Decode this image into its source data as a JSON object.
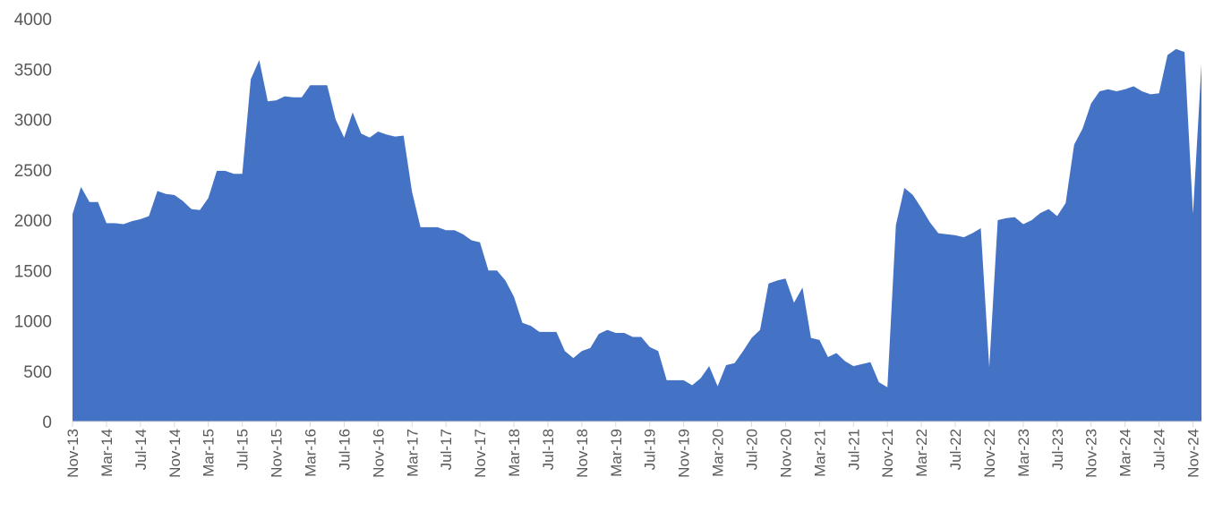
{
  "chart_data": {
    "type": "area",
    "title": "",
    "xlabel": "",
    "ylabel": "",
    "ylim": [
      0,
      4000
    ],
    "yticks": [
      0,
      500,
      1000,
      1500,
      2000,
      2500,
      3000,
      3500,
      4000
    ],
    "grid": false,
    "legend": "none",
    "fill_color": "#4472C4",
    "x_tick_labels": [
      "Nov-13",
      "Mar-14",
      "Jul-14",
      "Nov-14",
      "Mar-15",
      "Jul-15",
      "Nov-15",
      "Mar-16",
      "Jul-16",
      "Nov-16",
      "Mar-17",
      "Jul-17",
      "Nov-17",
      "Mar-18",
      "Jul-18",
      "Nov-18",
      "Mar-19",
      "Jul-19",
      "Nov-19",
      "Mar-20",
      "Jul-20",
      "Nov-20",
      "Mar-21",
      "Jul-21",
      "Nov-21",
      "Mar-22",
      "Jul-22",
      "Nov-22",
      "Mar-23",
      "Jul-23",
      "Nov-23",
      "Mar-24",
      "Jul-24",
      "Nov-24"
    ],
    "x": [
      "2013-11",
      "2013-12",
      "2014-01",
      "2014-02",
      "2014-03",
      "2014-04",
      "2014-05",
      "2014-06",
      "2014-07",
      "2014-08",
      "2014-09",
      "2014-10",
      "2014-11",
      "2014-12",
      "2015-01",
      "2015-02",
      "2015-03",
      "2015-04",
      "2015-05",
      "2015-06",
      "2015-07",
      "2015-08",
      "2015-09",
      "2015-10",
      "2015-11",
      "2015-12",
      "2016-01",
      "2016-02",
      "2016-03",
      "2016-04",
      "2016-05",
      "2016-06",
      "2016-07",
      "2016-08",
      "2016-09",
      "2016-10",
      "2016-11",
      "2016-12",
      "2017-01",
      "2017-02",
      "2017-03",
      "2017-04",
      "2017-05",
      "2017-06",
      "2017-07",
      "2017-08",
      "2017-09",
      "2017-10",
      "2017-11",
      "2017-12",
      "2018-01",
      "2018-02",
      "2018-03",
      "2018-04",
      "2018-05",
      "2018-06",
      "2018-07",
      "2018-08",
      "2018-09",
      "2018-10",
      "2018-11",
      "2018-12",
      "2019-01",
      "2019-02",
      "2019-03",
      "2019-04",
      "2019-05",
      "2019-06",
      "2019-07",
      "2019-08",
      "2019-09",
      "2019-10",
      "2019-11",
      "2019-12",
      "2020-01",
      "2020-02",
      "2020-03",
      "2020-04",
      "2020-05",
      "2020-06",
      "2020-07",
      "2020-08",
      "2020-09",
      "2020-10",
      "2020-11",
      "2020-12",
      "2021-01",
      "2021-02",
      "2021-03",
      "2021-04",
      "2021-05",
      "2021-06",
      "2021-07",
      "2021-08",
      "2021-09",
      "2021-10",
      "2021-11",
      "2021-12",
      "2022-01",
      "2022-02",
      "2022-03",
      "2022-04",
      "2022-05",
      "2022-06",
      "2022-07",
      "2022-08",
      "2022-09",
      "2022-10",
      "2022-11",
      "2022-12",
      "2023-01",
      "2023-02",
      "2023-03",
      "2023-04",
      "2023-05",
      "2023-06",
      "2023-07",
      "2023-08",
      "2023-09",
      "2023-10",
      "2023-11",
      "2023-12",
      "2024-01",
      "2024-02",
      "2024-03",
      "2024-04",
      "2024-05",
      "2024-06",
      "2024-07",
      "2024-08",
      "2024-09",
      "2024-10",
      "2024-11",
      "2024-12"
    ],
    "values": [
      2060,
      2330,
      2180,
      2180,
      1970,
      1970,
      1960,
      1990,
      2010,
      2040,
      2290,
      2260,
      2250,
      2190,
      2110,
      2100,
      2220,
      2490,
      2490,
      2460,
      2460,
      3400,
      3590,
      3180,
      3190,
      3230,
      3220,
      3220,
      3340,
      3340,
      3340,
      3000,
      2820,
      3070,
      2860,
      2820,
      2880,
      2850,
      2830,
      2840,
      2280,
      1930,
      1930,
      1930,
      1900,
      1900,
      1860,
      1800,
      1780,
      1500,
      1500,
      1400,
      1240,
      980,
      950,
      890,
      890,
      890,
      700,
      630,
      700,
      730,
      870,
      910,
      880,
      880,
      840,
      840,
      740,
      700,
      410,
      410,
      410,
      360,
      430,
      550,
      350,
      560,
      580,
      700,
      830,
      910,
      1370,
      1400,
      1420,
      1180,
      1330,
      830,
      810,
      640,
      680,
      600,
      550,
      570,
      590,
      390,
      340,
      1950,
      2320,
      2250,
      2120,
      1980,
      1870,
      1860,
      1850,
      1830,
      1870,
      1920,
      540,
      2000,
      2020,
      2030,
      1960,
      2000,
      2070,
      2110,
      2040,
      2170,
      2750,
      2910,
      3160,
      3280,
      3300,
      3280,
      3300,
      3330,
      3280,
      3250,
      3260,
      3640,
      3700,
      3670,
      2060,
      3550
    ]
  }
}
